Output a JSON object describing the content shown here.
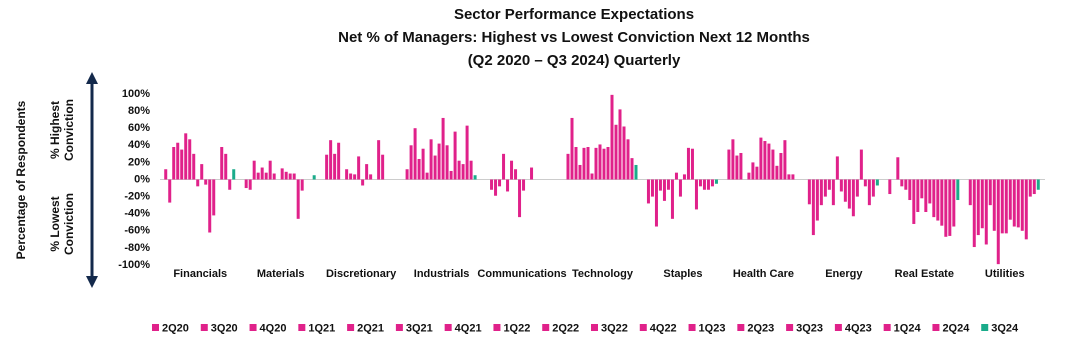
{
  "chart_data": {
    "type": "grouped-bar",
    "title": "Sector Performance Expectations",
    "subtitle": [
      "Net % of Managers: Highest vs Lowest Conviction Next 12 Months",
      "(Q2 2020  – Q3 2024) Quarterly"
    ],
    "ylabel": "Percentage of Respondents",
    "annotations": [
      "% Highest",
      "Conviction",
      "% Lowest",
      "Conviction"
    ],
    "categories": [
      "Financials",
      "Materials",
      "Discretionary",
      "Industrials",
      "Communications",
      "Technology",
      "Staples",
      "Health Care",
      "Energy",
      "Real Estate",
      "Utilities"
    ],
    "ylim": [
      -100,
      100
    ],
    "yticks": [
      {
        "value": -100,
        "label": "-100%"
      },
      {
        "value": -80,
        "label": "-80%"
      },
      {
        "value": -60,
        "label": "-60%"
      },
      {
        "value": -40,
        "label": "-40%"
      },
      {
        "value": -20,
        "label": "-20%"
      },
      {
        "value": 0,
        "label": "0%"
      },
      {
        "value": 20,
        "label": "20%"
      },
      {
        "value": 40,
        "label": "40%"
      },
      {
        "value": 60,
        "label": "60%"
      },
      {
        "value": 80,
        "label": "80%"
      },
      {
        "value": 100,
        "label": "100%"
      }
    ],
    "series": [
      {
        "name": "2Q20",
        "color": "#e0218a",
        "values": [
          12,
          -10,
          29,
          12,
          0,
          30,
          -28,
          35,
          -29,
          -17,
          -30
        ]
      },
      {
        "name": "3Q20",
        "color": "#e0218a",
        "values": [
          -27,
          -12,
          46,
          40,
          -12,
          72,
          -20,
          47,
          -65,
          0,
          -79
        ]
      },
      {
        "name": "4Q20",
        "color": "#e0218a",
        "values": [
          38,
          22,
          30,
          60,
          -19,
          38,
          -55,
          28,
          -48,
          26,
          -65
        ]
      },
      {
        "name": "1Q21",
        "color": "#e0218a",
        "values": [
          43,
          8,
          43,
          24,
          -8,
          17,
          -13,
          31,
          -30,
          -8,
          -57
        ]
      },
      {
        "name": "2Q21",
        "color": "#e0218a",
        "values": [
          35,
          14,
          0,
          36,
          30,
          37,
          -25,
          0,
          -20,
          -12,
          -76
        ]
      },
      {
        "name": "3Q21",
        "color": "#e0218a",
        "values": [
          54,
          8,
          12,
          8,
          -14,
          38,
          -12,
          8,
          -12,
          -24,
          -30
        ]
      },
      {
        "name": "4Q21",
        "color": "#e0218a",
        "values": [
          47,
          22,
          7,
          47,
          22,
          7,
          -46,
          20,
          -30,
          -52,
          -60
        ]
      },
      {
        "name": "1Q22",
        "color": "#e0218a",
        "values": [
          30,
          7,
          6,
          28,
          12,
          37,
          8,
          15,
          27,
          -38,
          -99
        ]
      },
      {
        "name": "2Q22",
        "color": "#e0218a",
        "values": [
          -8,
          0,
          27,
          42,
          -44,
          41,
          -20,
          49,
          -14,
          -22,
          -63
        ]
      },
      {
        "name": "3Q22",
        "color": "#e0218a",
        "values": [
          18,
          13,
          -7,
          72,
          -13,
          36,
          6,
          45,
          -26,
          -38,
          -63
        ]
      },
      {
        "name": "4Q22",
        "color": "#e0218a",
        "values": [
          -6,
          9,
          18,
          40,
          0,
          38,
          37,
          42,
          -34,
          -28,
          -47
        ]
      },
      {
        "name": "1Q23",
        "color": "#e0218a",
        "values": [
          -62,
          7,
          6,
          10,
          14,
          99,
          36,
          35,
          -43,
          -44,
          -55
        ]
      },
      {
        "name": "2Q23",
        "color": "#e0218a",
        "values": [
          -42,
          7,
          0,
          56,
          0,
          64,
          -35,
          16,
          -20,
          -48,
          -56
        ]
      },
      {
        "name": "3Q23",
        "color": "#e0218a",
        "values": [
          0,
          -46,
          46,
          22,
          0,
          82,
          -8,
          31,
          35,
          -54,
          -60
        ]
      },
      {
        "name": "4Q23",
        "color": "#e0218a",
        "values": [
          38,
          -13,
          29,
          18,
          0,
          62,
          -12,
          46,
          -8,
          -67,
          -70
        ]
      },
      {
        "name": "1Q24",
        "color": "#e0218a",
        "values": [
          30,
          0,
          0,
          63,
          0,
          47,
          -12,
          6,
          -30,
          -66,
          -20
        ]
      },
      {
        "name": "2Q24",
        "color": "#e0218a",
        "values": [
          -12,
          0,
          0,
          22,
          0,
          25,
          -8,
          6,
          -20,
          -55,
          -17
        ]
      },
      {
        "name": "3Q24",
        "color": "#1aab8a",
        "values": [
          12,
          5,
          0,
          5,
          0,
          17,
          -5,
          0,
          -7,
          -24,
          -12
        ]
      }
    ]
  }
}
